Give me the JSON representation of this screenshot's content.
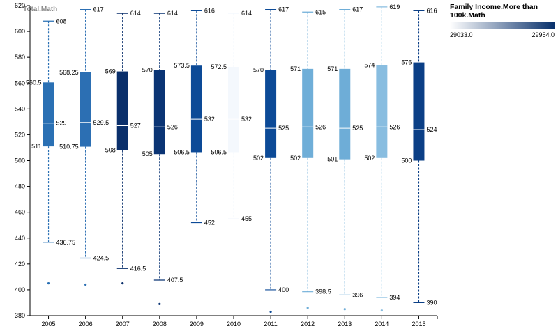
{
  "chart_data": {
    "type": "boxplot",
    "y_axis_title": "Total.Math",
    "ylim": [
      380,
      620
    ],
    "y_ticks": [
      380,
      400,
      420,
      440,
      460,
      480,
      500,
      520,
      540,
      560,
      580,
      600,
      620
    ],
    "color_legend": {
      "title": "Family Income.More than 100k.Math",
      "min_label": "29033.0",
      "max_label": "29954.0",
      "min_color": "#ffffff",
      "max_color": "#08306b"
    },
    "boxes": [
      {
        "year": "2005",
        "color": "#2a70b4",
        "low": 436.75,
        "low_label": "436.75",
        "q1": 511,
        "q1_label": "511",
        "median": 529,
        "median_label": "529",
        "q3": 560.5,
        "q3_label": "560.5",
        "high": 608,
        "high_label": "608",
        "outliers": [
          405
        ]
      },
      {
        "year": "2006",
        "color": "#2c6fb3",
        "low": 424.5,
        "low_label": "424.5",
        "q1": 510.75,
        "q1_label": "510.75",
        "median": 529.5,
        "median_label": "529.5",
        "q3": 568.25,
        "q3_label": "568.25",
        "high": 617,
        "high_label": "617",
        "outliers": [
          404
        ]
      },
      {
        "year": "2007",
        "color": "#0a2f6b",
        "low": 416.5,
        "low_label": "416.5",
        "q1": 508,
        "q1_label": "508",
        "median": 527,
        "median_label": "527",
        "q3": 569,
        "q3_label": "569",
        "high": 614,
        "high_label": "614",
        "outliers": [
          405
        ]
      },
      {
        "year": "2008",
        "color": "#0a3474",
        "low": 407.5,
        "low_label": "407.5",
        "q1": 505,
        "q1_label": "505",
        "median": 526,
        "median_label": "526",
        "q3": 570,
        "q3_label": "570",
        "high": 614,
        "high_label": "614",
        "outliers": [
          389
        ]
      },
      {
        "year": "2009",
        "color": "#0c4a97",
        "low": 452,
        "low_label": "452",
        "q1": 506.5,
        "q1_label": "506.5",
        "median": 532,
        "median_label": "532",
        "q3": 573.5,
        "q3_label": "573.5",
        "high": 616,
        "high_label": "616",
        "outliers": []
      },
      {
        "year": "2010",
        "color": "#f4f8fd",
        "low": 455,
        "low_label": "455",
        "q1": 506.5,
        "q1_label": "506.5",
        "median": 532,
        "median_label": "532",
        "q3": 572.5,
        "q3_label": "572.5",
        "high": 614,
        "high_label": "614",
        "outliers": []
      },
      {
        "year": "2011",
        "color": "#0c4a97",
        "low": 400,
        "low_label": "400",
        "q1": 502,
        "q1_label": "502",
        "median": 525,
        "median_label": "525",
        "q3": 570,
        "q3_label": "570",
        "high": 617,
        "high_label": "617",
        "outliers": [
          383
        ]
      },
      {
        "year": "2012",
        "color": "#6faed8",
        "low": 398.5,
        "low_label": "398.5",
        "q1": 502,
        "q1_label": "502",
        "median": 526,
        "median_label": "526",
        "q3": 571,
        "q3_label": "571",
        "high": 615,
        "high_label": "615",
        "outliers": [
          386
        ]
      },
      {
        "year": "2013",
        "color": "#6eadd7",
        "low": 396,
        "low_label": "396",
        "q1": 501,
        "q1_label": "501",
        "median": 525,
        "median_label": "525",
        "q3": 571,
        "q3_label": "571",
        "high": 617,
        "high_label": "617",
        "outliers": [
          385
        ]
      },
      {
        "year": "2014",
        "color": "#88bde0",
        "low": 394,
        "low_label": "394",
        "q1": 502,
        "q1_label": "502",
        "median": 526,
        "median_label": "526",
        "q3": 574,
        "q3_label": "574",
        "high": 619,
        "high_label": "619",
        "outliers": [
          384
        ]
      },
      {
        "year": "2015",
        "color": "#0b3f86",
        "low": 390,
        "low_label": "390",
        "q1": 500,
        "q1_label": "500",
        "median": 524,
        "median_label": "524",
        "q3": 576,
        "q3_label": "576",
        "high": 616,
        "high_label": "616",
        "outliers": []
      }
    ]
  }
}
